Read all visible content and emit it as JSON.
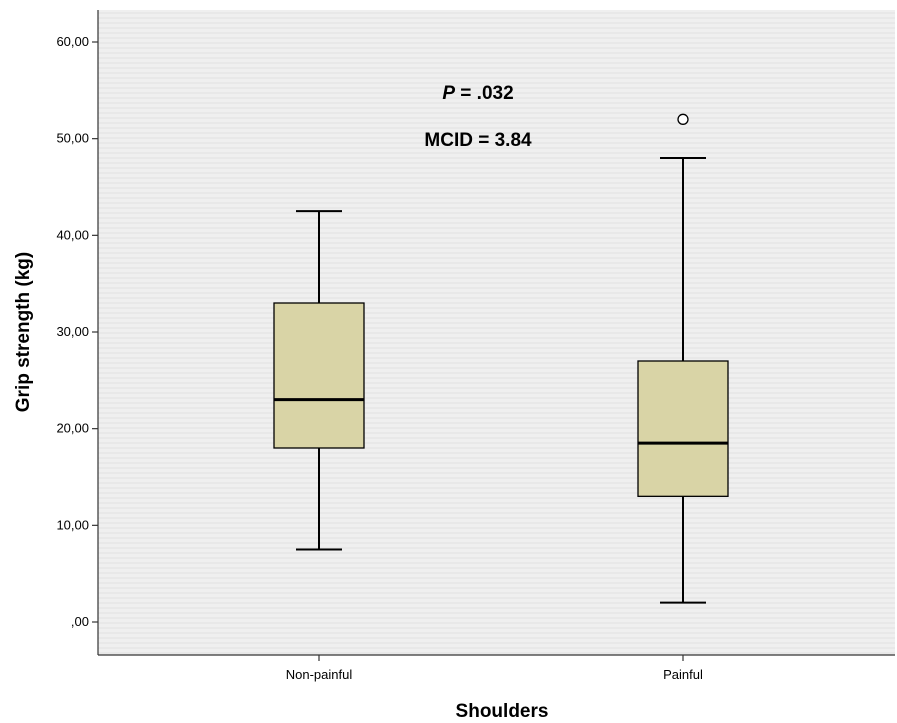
{
  "chart_data": {
    "type": "boxplot",
    "xlabel": "Shoulders",
    "ylabel": "Grip strength (kg)",
    "ylim": [
      0,
      63.5
    ],
    "yticks": [
      {
        "value": 0,
        "label": ",00"
      },
      {
        "value": 10,
        "label": "10,00"
      },
      {
        "value": 20,
        "label": "20,00"
      },
      {
        "value": 30,
        "label": "30,00"
      },
      {
        "value": 40,
        "label": "40,00"
      },
      {
        "value": 50,
        "label": "50,00"
      },
      {
        "value": 60,
        "label": "60,00"
      }
    ],
    "categories": [
      "Non-painful",
      "Painful"
    ],
    "boxes": [
      {
        "category": "Non-painful",
        "whisker_low": 7.5,
        "q1": 18.0,
        "median": 23.0,
        "q3": 33.0,
        "whisker_high": 42.5,
        "outliers": []
      },
      {
        "category": "Painful",
        "whisker_low": 2.0,
        "q1": 13.0,
        "median": 18.5,
        "q3": 27.0,
        "whisker_high": 48.0,
        "outliers": [
          52.0
        ]
      }
    ],
    "annotations": {
      "p_label": "P",
      "p_value": " = .032",
      "mcid": "MCID = 3.84"
    },
    "colors": {
      "box_fill": "#d9d4a6",
      "plot_background": "#efefef",
      "gridline": "#e2e2e2"
    },
    "grid": "horizontal fine lines"
  }
}
